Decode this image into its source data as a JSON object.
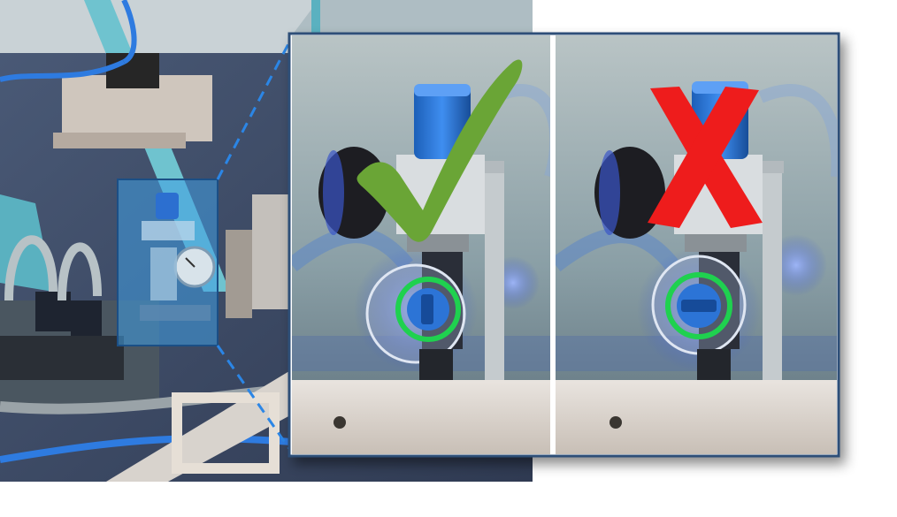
{
  "figure": {
    "panels": [
      {
        "verdict": "correct",
        "symbol": "checkmark-icon",
        "symbol_color": "#6aa536",
        "valve_state": "open"
      },
      {
        "verdict": "incorrect",
        "symbol": "x-mark-icon",
        "symbol_color": "#ee1c1c",
        "valve_state": "closed"
      }
    ],
    "highlight_ring_color": "#1fd14f",
    "zoom_guide_color": "#2b86e6",
    "frame_color": "#2e4f78"
  }
}
